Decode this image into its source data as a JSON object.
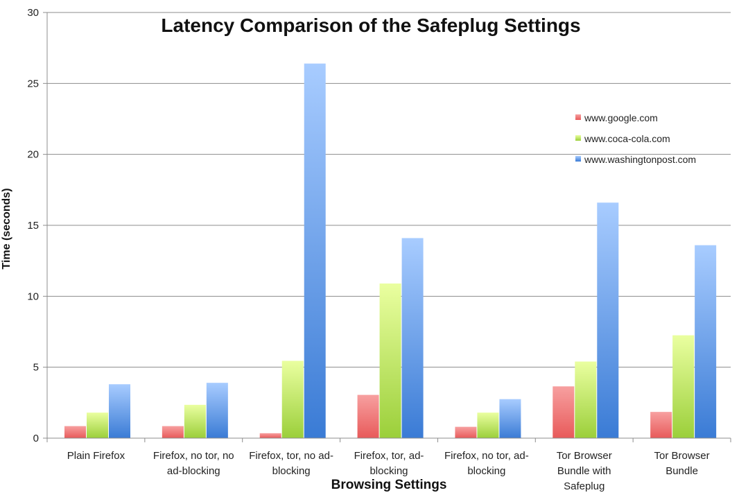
{
  "chart_data": {
    "type": "bar",
    "title": "Latency Comparison of the Safeplug Settings",
    "xlabel": "Browsing Settings",
    "ylabel": "Time (seconds)",
    "ylim": [
      0,
      30
    ],
    "yticks": [
      0,
      5,
      10,
      15,
      20,
      25,
      30
    ],
    "grid": true,
    "legend_position": "right",
    "categories": [
      [
        "Plain Firefox"
      ],
      [
        "Firefox, no tor, no",
        "ad-blocking"
      ],
      [
        "Firefox, tor, no ad-",
        "blocking"
      ],
      [
        "Firefox, tor, ad-",
        "blocking"
      ],
      [
        "Firefox, no tor, ad-",
        "blocking"
      ],
      [
        "Tor Browser",
        "Bundle with",
        "Safeplug"
      ],
      [
        "Tor Browser",
        "Bundle"
      ]
    ],
    "series": [
      {
        "name": "www.google.com",
        "color": "#e85a5a",
        "color_light": "#f7a0a0",
        "values": [
          0.85,
          0.85,
          0.35,
          3.05,
          0.8,
          3.65,
          1.85
        ]
      },
      {
        "name": "www.coca-cola.com",
        "color": "#9bcf3a",
        "color_light": "#eaffa0",
        "values": [
          1.8,
          2.35,
          5.45,
          10.9,
          1.8,
          5.4,
          7.25
        ]
      },
      {
        "name": "www.washingtonpost.com",
        "color": "#3a7bd5",
        "color_light": "#a8ccff",
        "values": [
          3.8,
          3.9,
          26.4,
          14.1,
          2.75,
          16.6,
          13.6
        ]
      }
    ]
  }
}
